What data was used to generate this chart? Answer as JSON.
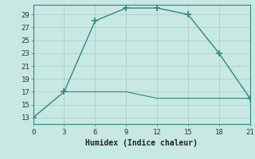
{
  "line1_x": [
    0,
    3,
    6,
    9,
    12,
    15,
    18,
    21
  ],
  "line1_y": [
    13,
    17,
    28,
    30,
    30,
    29,
    23,
    16
  ],
  "line2_x": [
    3,
    6,
    9,
    12,
    15,
    18,
    21
  ],
  "line2_y": [
    17,
    17,
    17,
    16,
    16,
    16,
    16
  ],
  "line_color": "#2e8b77",
  "bg_color": "#c8e8e4",
  "grid_color": "#aed0cc",
  "xlabel": "Humidex (Indice chaleur)",
  "xlim": [
    0,
    21
  ],
  "ylim": [
    12,
    30.5
  ],
  "xticks": [
    0,
    3,
    6,
    9,
    12,
    15,
    18,
    21
  ],
  "yticks": [
    13,
    15,
    17,
    19,
    21,
    23,
    25,
    27,
    29
  ],
  "label_fontsize": 7,
  "tick_fontsize": 6.5,
  "spine_color": "#2e8b77",
  "marker_size": 3.5
}
